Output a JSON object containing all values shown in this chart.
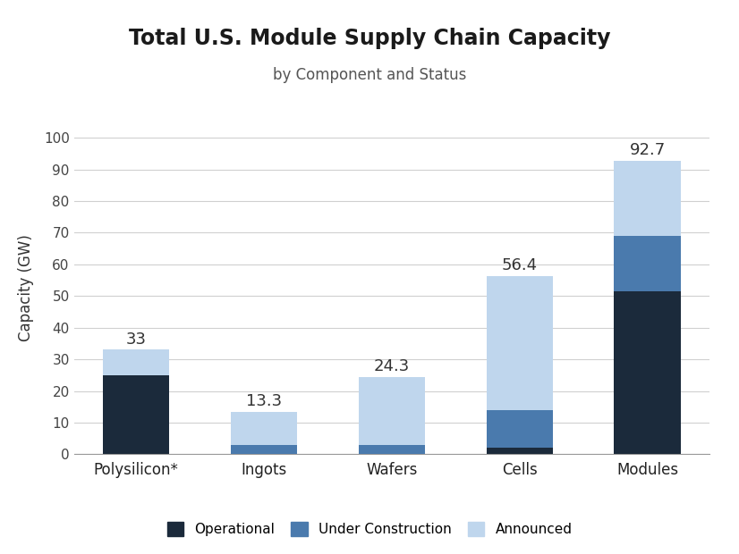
{
  "title": "Total U.S. Module Supply Chain Capacity",
  "subtitle": "by Component and Status",
  "categories": [
    "Polysilicon*",
    "Ingots",
    "Wafers",
    "Cells",
    "Modules"
  ],
  "operational": [
    25.0,
    0.0,
    0.0,
    2.0,
    51.5
  ],
  "under_construction": [
    0.0,
    3.0,
    3.0,
    12.0,
    17.5
  ],
  "announced": [
    8.0,
    10.3,
    21.3,
    42.4,
    23.7
  ],
  "totals": [
    "33",
    "13.3",
    "24.3",
    "56.4",
    "92.7"
  ],
  "color_operational": "#1b2a3b",
  "color_under_construction": "#4a7aad",
  "color_announced": "#bfd6ed",
  "ylabel": "Capacity (GW)",
  "ylim": [
    0,
    105
  ],
  "yticks": [
    0,
    10,
    20,
    30,
    40,
    50,
    60,
    70,
    80,
    90,
    100
  ],
  "legend_labels": [
    "Operational",
    "Under Construction",
    "Announced"
  ],
  "background_color": "#ffffff",
  "title_fontsize": 17,
  "subtitle_fontsize": 12,
  "label_fontsize": 12,
  "tick_fontsize": 11,
  "annotation_fontsize": 13
}
